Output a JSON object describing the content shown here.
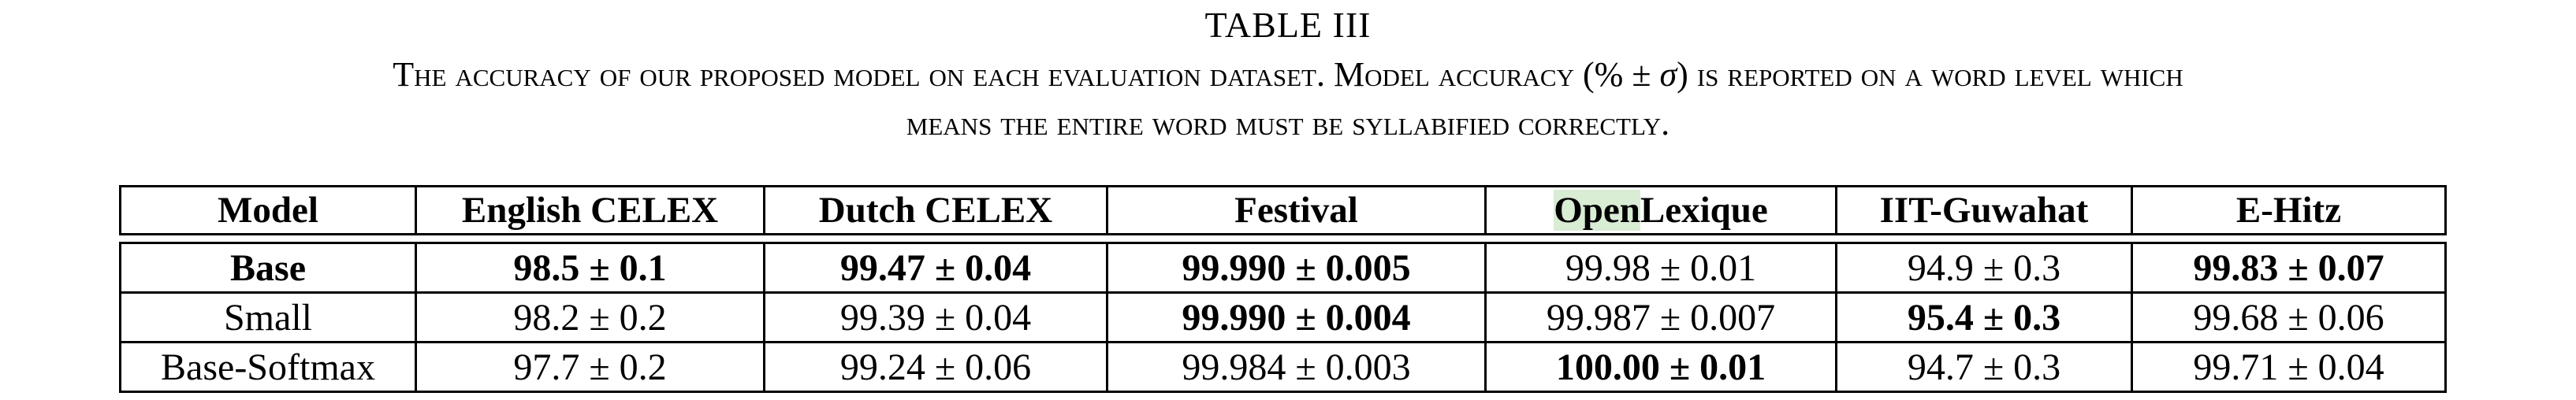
{
  "table_title": "TABLE III",
  "caption": {
    "line1_before_math": "The accuracy of our proposed model on each evaluation dataset. Model accuracy (",
    "math_pct": "%",
    "math_pm": " ± ",
    "math_sigma": "σ",
    "line1_after_math": ") is reported on a word level which",
    "line2": "means the entire word must be syllabified correctly."
  },
  "table": {
    "headers": [
      "Model",
      "English CELEX",
      "Dutch CELEX",
      "Festival",
      "OpenLexique",
      "IIT-Guwahat",
      "E-Hitz"
    ],
    "header_highlight": {
      "prefix": "Open",
      "suffix": "Lexique"
    },
    "rows": [
      {
        "model": "Base",
        "model_bold": true,
        "cells": [
          {
            "value": "98.5 ± 0.1",
            "bold": true
          },
          {
            "value": "99.47 ± 0.04",
            "bold": true
          },
          {
            "value": "99.990 ± 0.005",
            "bold": true
          },
          {
            "value": "99.98 ± 0.01",
            "bold": false
          },
          {
            "value": "94.9 ± 0.3",
            "bold": false
          },
          {
            "value": "99.83 ± 0.07",
            "bold": true
          }
        ]
      },
      {
        "model": "Small",
        "model_bold": false,
        "cells": [
          {
            "value": "98.2 ± 0.2",
            "bold": false
          },
          {
            "value": "99.39 ± 0.04",
            "bold": false
          },
          {
            "value": "99.990 ± 0.004",
            "bold": true
          },
          {
            "value": "99.987 ± 0.007",
            "bold": false
          },
          {
            "value": "95.4 ± 0.3",
            "bold": true
          },
          {
            "value": "99.68 ± 0.06",
            "bold": false
          }
        ]
      },
      {
        "model": "Base-Softmax",
        "model_bold": false,
        "cells": [
          {
            "value": "97.7 ± 0.2",
            "bold": false
          },
          {
            "value": "99.24 ± 0.06",
            "bold": false
          },
          {
            "value": "99.984 ± 0.003",
            "bold": false
          },
          {
            "value": "100.00 ± 0.01",
            "bold": true
          },
          {
            "value": "94.7 ± 0.3",
            "bold": false
          },
          {
            "value": "99.71 ± 0.04",
            "bold": false
          }
        ]
      }
    ]
  }
}
